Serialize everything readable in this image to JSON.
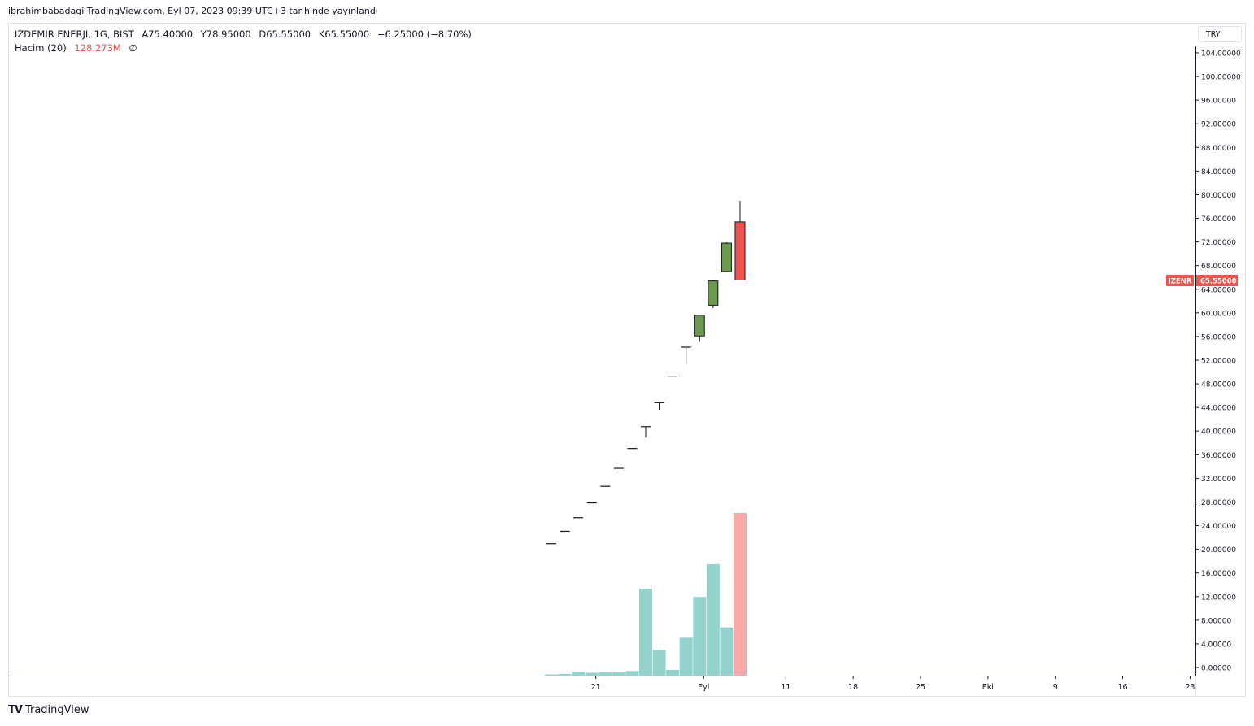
{
  "published_note": "ibrahimbabadagi TradingView.com, Eyl 07, 2023 09:39 UTC+3 tarihinde yayınlandı",
  "legend": {
    "symbol": "IZDEMIR ENERJI, 1G, BIST",
    "open": "A75.40000",
    "high": "Y78.95000",
    "low": "D65.55000",
    "close": "K65.55000",
    "change": "−6.25000 (−8.70%)",
    "volume_label": "Hacim (20)",
    "volume_value": "128.273M",
    "volume_icon": "empty-set-icon"
  },
  "currency": "TRY",
  "price_tag": {
    "ticker": "IZENR",
    "value": "65.55000"
  },
  "brand": {
    "logo": "tradingview-logo-icon",
    "name": "TradingView"
  },
  "colors": {
    "up": "#6a9a4b",
    "down": "#ef5350",
    "vol_up": "#93d3cc",
    "vol_down": "#f7a9a7",
    "tag": "#ef5350"
  },
  "chart_data": {
    "type": "candlestick",
    "y_axis": {
      "min": 0,
      "max": 104,
      "ticks": [
        "104.00000",
        "100.00000",
        "96.00000",
        "92.00000",
        "88.00000",
        "84.00000",
        "80.00000",
        "76.00000",
        "72.00000",
        "68.00000",
        "64.00000",
        "60.00000",
        "56.00000",
        "52.00000",
        "48.00000",
        "44.00000",
        "40.00000",
        "36.00000",
        "32.00000",
        "28.00000",
        "24.00000",
        "20.00000",
        "16.00000",
        "12.00000",
        "8.00000",
        "4.00000",
        "0.00000"
      ]
    },
    "x_axis": {
      "ticks": [
        {
          "label": "21",
          "bar": 3.3
        },
        {
          "label": "Eyl",
          "bar": 11.3
        },
        {
          "label": "11",
          "bar": 17.4
        },
        {
          "label": "18",
          "bar": 22.4
        },
        {
          "label": "25",
          "bar": 27.4
        },
        {
          "label": "Eki",
          "bar": 32.4
        },
        {
          "label": "9",
          "bar": 37.4
        },
        {
          "label": "16",
          "bar": 42.4
        },
        {
          "label": "23",
          "bar": 47.4
        }
      ]
    },
    "candles": [
      {
        "o": 20.95,
        "h": 20.95,
        "l": 20.95,
        "c": 20.95
      },
      {
        "o": 23.05,
        "h": 23.05,
        "l": 23.05,
        "c": 23.05
      },
      {
        "o": 25.35,
        "h": 25.35,
        "l": 25.35,
        "c": 25.35
      },
      {
        "o": 27.85,
        "h": 27.85,
        "l": 27.85,
        "c": 27.85
      },
      {
        "o": 30.65,
        "h": 30.65,
        "l": 30.65,
        "c": 30.65
      },
      {
        "o": 33.7,
        "h": 33.7,
        "l": 33.7,
        "c": 33.7
      },
      {
        "o": 37.05,
        "h": 37.05,
        "l": 37.05,
        "c": 37.05
      },
      {
        "o": 40.75,
        "h": 40.75,
        "l": 38.9,
        "c": 40.75
      },
      {
        "o": 44.8,
        "h": 44.8,
        "l": 43.6,
        "c": 44.8
      },
      {
        "o": 49.3,
        "h": 49.3,
        "l": 49.3,
        "c": 49.3
      },
      {
        "o": 54.2,
        "h": 54.2,
        "l": 51.3,
        "c": 54.2
      },
      {
        "o": 56.1,
        "h": 59.6,
        "l": 55.1,
        "c": 59.6
      },
      {
        "o": 61.3,
        "h": 65.55,
        "l": 60.8,
        "c": 65.4
      },
      {
        "o": 67.0,
        "h": 71.95,
        "l": 67.0,
        "c": 71.8
      },
      {
        "o": 75.4,
        "h": 78.95,
        "l": 65.55,
        "c": 65.55
      }
    ],
    "volume": [
      0.2,
      0.3,
      0.7,
      0.5,
      0.6,
      0.6,
      0.8,
      15.1,
      4.5,
      1.0,
      6.6,
      13.7,
      19.4,
      8.4,
      28.3
    ],
    "volume_max": 28.3
  }
}
